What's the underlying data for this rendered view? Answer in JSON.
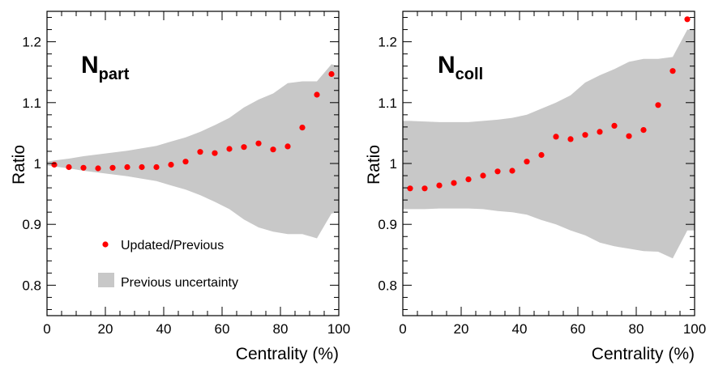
{
  "chart_data": [
    {
      "type": "scatter",
      "panel_label": {
        "main": "N",
        "sub": "part"
      },
      "xlabel": "Centrality (%)",
      "ylabel": "Ratio",
      "xlim": [
        0,
        100
      ],
      "ylim": [
        0.75,
        1.25
      ],
      "x_ticks": [
        "0",
        "20",
        "40",
        "60",
        "80",
        "100"
      ],
      "y_ticks": [
        "0.8",
        "0.9",
        "1",
        "1.1",
        "1.2"
      ],
      "legend": {
        "position": "lower-left",
        "entries": [
          {
            "label": "Updated/Previous",
            "marker": "red-dot"
          },
          {
            "label": "Previous uncertainty",
            "marker": "gray-box"
          }
        ]
      },
      "series": [
        {
          "name": "Updated/Previous",
          "x": [
            2.5,
            7.5,
            12.5,
            17.5,
            22.5,
            27.5,
            32.5,
            37.5,
            42.5,
            47.5,
            52.5,
            57.5,
            62.5,
            67.5,
            72.5,
            77.5,
            82.5,
            87.5,
            92.5,
            97.5
          ],
          "y": [
            0.998,
            0.994,
            0.993,
            0.992,
            0.993,
            0.994,
            0.994,
            0.994,
            0.998,
            1.003,
            1.019,
            1.017,
            1.024,
            1.027,
            1.033,
            1.023,
            1.028,
            1.059,
            1.113,
            1.147
          ]
        }
      ],
      "uncertainty_band": {
        "name": "Previous uncertainty",
        "x": [
          0,
          2.5,
          7.5,
          12.5,
          17.5,
          22.5,
          27.5,
          32.5,
          37.5,
          42.5,
          47.5,
          52.5,
          57.5,
          62.5,
          67.5,
          72.5,
          77.5,
          82.5,
          87.5,
          92.5,
          97.5,
          100
        ],
        "upper": [
          1.003,
          1.005,
          1.008,
          1.012,
          1.015,
          1.018,
          1.021,
          1.025,
          1.029,
          1.036,
          1.043,
          1.052,
          1.063,
          1.075,
          1.092,
          1.105,
          1.115,
          1.132,
          1.135,
          1.135,
          1.163,
          1.16
        ],
        "lower": [
          0.997,
          0.995,
          0.992,
          0.988,
          0.985,
          0.982,
          0.979,
          0.975,
          0.971,
          0.964,
          0.957,
          0.948,
          0.937,
          0.925,
          0.908,
          0.895,
          0.888,
          0.884,
          0.884,
          0.877,
          0.918,
          0.92
        ]
      },
      "colors": {
        "points": "#ff0000",
        "band": "#c8c8c8"
      }
    },
    {
      "type": "scatter",
      "panel_label": {
        "main": "N",
        "sub": "coll"
      },
      "xlabel": "Centrality (%)",
      "ylabel": "Ratio",
      "xlim": [
        0,
        100
      ],
      "ylim": [
        0.75,
        1.25
      ],
      "x_ticks": [
        "0",
        "20",
        "40",
        "60",
        "80",
        "100"
      ],
      "y_ticks": [
        "0.8",
        "0.9",
        "1",
        "1.1",
        "1.2"
      ],
      "series": [
        {
          "name": "Updated/Previous",
          "x": [
            2.5,
            7.5,
            12.5,
            17.5,
            22.5,
            27.5,
            32.5,
            37.5,
            42.5,
            47.5,
            52.5,
            57.5,
            62.5,
            67.5,
            72.5,
            77.5,
            82.5,
            87.5,
            92.5,
            97.5
          ],
          "y": [
            0.959,
            0.959,
            0.964,
            0.968,
            0.974,
            0.98,
            0.987,
            0.988,
            1.003,
            1.014,
            1.044,
            1.04,
            1.047,
            1.052,
            1.062,
            1.045,
            1.055,
            1.096,
            1.152,
            1.237
          ]
        }
      ],
      "uncertainty_band": {
        "name": "Previous uncertainty",
        "x": [
          0,
          2.5,
          7.5,
          12.5,
          17.5,
          22.5,
          27.5,
          32.5,
          37.5,
          42.5,
          47.5,
          52.5,
          57.5,
          62.5,
          67.5,
          72.5,
          77.5,
          82.5,
          87.5,
          92.5,
          97.5,
          100
        ],
        "upper": [
          1.07,
          1.07,
          1.069,
          1.068,
          1.068,
          1.068,
          1.07,
          1.072,
          1.075,
          1.08,
          1.09,
          1.1,
          1.112,
          1.133,
          1.145,
          1.155,
          1.167,
          1.172,
          1.172,
          1.175,
          1.22,
          1.22
        ],
        "lower": [
          0.925,
          0.925,
          0.925,
          0.926,
          0.926,
          0.926,
          0.925,
          0.922,
          0.92,
          0.916,
          0.907,
          0.9,
          0.89,
          0.882,
          0.87,
          0.864,
          0.86,
          0.856,
          0.855,
          0.844,
          0.89,
          0.89
        ]
      },
      "colors": {
        "points": "#ff0000",
        "band": "#c8c8c8"
      }
    }
  ]
}
